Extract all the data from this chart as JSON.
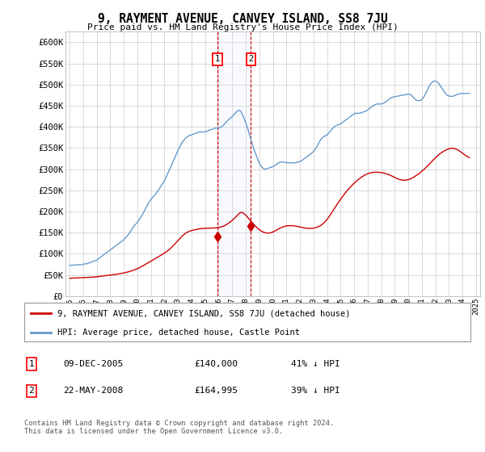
{
  "title": "9, RAYMENT AVENUE, CANVEY ISLAND, SS8 7JU",
  "subtitle": "Price paid vs. HM Land Registry's House Price Index (HPI)",
  "background_color": "#ffffff",
  "grid_color": "#cccccc",
  "hpi_color": "#6699cc",
  "price_color": "#cc0000",
  "transaction1": {
    "date": "09-DEC-2005",
    "price": 140000,
    "label": "1",
    "year": 2005.92,
    "hpi_pct": "41% ↓ HPI"
  },
  "transaction2": {
    "date": "22-MAY-2008",
    "price": 164995,
    "label": "2",
    "year": 2008.38,
    "hpi_pct": "39% ↓ HPI"
  },
  "legend_line1": "9, RAYMENT AVENUE, CANVEY ISLAND, SS8 7JU (detached house)",
  "legend_line2": "HPI: Average price, detached house, Castle Point",
  "footer": "Contains HM Land Registry data © Crown copyright and database right 2024.\nThis data is licensed under the Open Government Licence v3.0.",
  "ylim": [
    0,
    625000
  ],
  "yticks": [
    0,
    50000,
    100000,
    150000,
    200000,
    250000,
    300000,
    350000,
    400000,
    450000,
    500000,
    550000,
    600000
  ],
  "xlim": [
    1994.7,
    2025.3
  ],
  "hpi_data_x": [
    1995.0,
    1995.08,
    1995.17,
    1995.25,
    1995.33,
    1995.42,
    1995.5,
    1995.58,
    1995.67,
    1995.75,
    1995.83,
    1995.92,
    1996.0,
    1996.08,
    1996.17,
    1996.25,
    1996.33,
    1996.42,
    1996.5,
    1996.58,
    1996.67,
    1996.75,
    1996.83,
    1996.92,
    1997.0,
    1997.08,
    1997.17,
    1997.25,
    1997.33,
    1997.42,
    1997.5,
    1997.58,
    1997.67,
    1997.75,
    1997.83,
    1997.92,
    1998.0,
    1998.08,
    1998.17,
    1998.25,
    1998.33,
    1998.42,
    1998.5,
    1998.58,
    1998.67,
    1998.75,
    1998.83,
    1998.92,
    1999.0,
    1999.08,
    1999.17,
    1999.25,
    1999.33,
    1999.42,
    1999.5,
    1999.58,
    1999.67,
    1999.75,
    1999.83,
    1999.92,
    2000.0,
    2000.08,
    2000.17,
    2000.25,
    2000.33,
    2000.42,
    2000.5,
    2000.58,
    2000.67,
    2000.75,
    2000.83,
    2000.92,
    2001.0,
    2001.08,
    2001.17,
    2001.25,
    2001.33,
    2001.42,
    2001.5,
    2001.58,
    2001.67,
    2001.75,
    2001.83,
    2001.92,
    2002.0,
    2002.08,
    2002.17,
    2002.25,
    2002.33,
    2002.42,
    2002.5,
    2002.58,
    2002.67,
    2002.75,
    2002.83,
    2002.92,
    2003.0,
    2003.08,
    2003.17,
    2003.25,
    2003.33,
    2003.42,
    2003.5,
    2003.58,
    2003.67,
    2003.75,
    2003.83,
    2003.92,
    2004.0,
    2004.08,
    2004.17,
    2004.25,
    2004.33,
    2004.42,
    2004.5,
    2004.58,
    2004.67,
    2004.75,
    2004.83,
    2004.92,
    2005.0,
    2005.08,
    2005.17,
    2005.25,
    2005.33,
    2005.42,
    2005.5,
    2005.58,
    2005.67,
    2005.75,
    2005.83,
    2005.92,
    2006.0,
    2006.08,
    2006.17,
    2006.25,
    2006.33,
    2006.42,
    2006.5,
    2006.58,
    2006.67,
    2006.75,
    2006.83,
    2006.92,
    2007.0,
    2007.08,
    2007.17,
    2007.25,
    2007.33,
    2007.42,
    2007.5,
    2007.58,
    2007.67,
    2007.75,
    2007.83,
    2007.92,
    2008.0,
    2008.08,
    2008.17,
    2008.25,
    2008.33,
    2008.42,
    2008.5,
    2008.58,
    2008.67,
    2008.75,
    2008.83,
    2008.92,
    2009.0,
    2009.08,
    2009.17,
    2009.25,
    2009.33,
    2009.42,
    2009.5,
    2009.58,
    2009.67,
    2009.75,
    2009.83,
    2009.92,
    2010.0,
    2010.08,
    2010.17,
    2010.25,
    2010.33,
    2010.42,
    2010.5,
    2010.58,
    2010.67,
    2010.75,
    2010.83,
    2010.92,
    2011.0,
    2011.08,
    2011.17,
    2011.25,
    2011.33,
    2011.42,
    2011.5,
    2011.58,
    2011.67,
    2011.75,
    2011.83,
    2011.92,
    2012.0,
    2012.08,
    2012.17,
    2012.25,
    2012.33,
    2012.42,
    2012.5,
    2012.58,
    2012.67,
    2012.75,
    2012.83,
    2012.92,
    2013.0,
    2013.08,
    2013.17,
    2013.25,
    2013.33,
    2013.42,
    2013.5,
    2013.58,
    2013.67,
    2013.75,
    2013.83,
    2013.92,
    2014.0,
    2014.08,
    2014.17,
    2014.25,
    2014.33,
    2014.42,
    2014.5,
    2014.58,
    2014.67,
    2014.75,
    2014.83,
    2014.92,
    2015.0,
    2015.08,
    2015.17,
    2015.25,
    2015.33,
    2015.42,
    2015.5,
    2015.58,
    2015.67,
    2015.75,
    2015.83,
    2015.92,
    2016.0,
    2016.08,
    2016.17,
    2016.25,
    2016.33,
    2016.42,
    2016.5,
    2016.58,
    2016.67,
    2016.75,
    2016.83,
    2016.92,
    2017.0,
    2017.08,
    2017.17,
    2017.25,
    2017.33,
    2017.42,
    2017.5,
    2017.58,
    2017.67,
    2017.75,
    2017.83,
    2017.92,
    2018.0,
    2018.08,
    2018.17,
    2018.25,
    2018.33,
    2018.42,
    2018.5,
    2018.58,
    2018.67,
    2018.75,
    2018.83,
    2018.92,
    2019.0,
    2019.08,
    2019.17,
    2019.25,
    2019.33,
    2019.42,
    2019.5,
    2019.58,
    2019.67,
    2019.75,
    2019.83,
    2019.92,
    2020.0,
    2020.08,
    2020.17,
    2020.25,
    2020.33,
    2020.42,
    2020.5,
    2020.58,
    2020.67,
    2020.75,
    2020.83,
    2020.92,
    2021.0,
    2021.08,
    2021.17,
    2021.25,
    2021.33,
    2021.42,
    2021.5,
    2021.58,
    2021.67,
    2021.75,
    2021.83,
    2021.92,
    2022.0,
    2022.08,
    2022.17,
    2022.25,
    2022.33,
    2022.42,
    2022.5,
    2022.58,
    2022.67,
    2022.75,
    2022.83,
    2022.92,
    2023.0,
    2023.08,
    2023.17,
    2023.25,
    2023.33,
    2023.42,
    2023.5,
    2023.58,
    2023.67,
    2023.75,
    2023.83,
    2023.92,
    2024.0,
    2024.08,
    2024.17,
    2024.25,
    2024.33,
    2024.42,
    2024.5
  ],
  "hpi_data_y": [
    72000,
    72500,
    73000,
    73000,
    73500,
    73500,
    74000,
    74000,
    74000,
    74000,
    74000,
    74500,
    75000,
    75500,
    76000,
    76500,
    77000,
    78000,
    79000,
    80000,
    81000,
    82000,
    83000,
    84000,
    85000,
    87000,
    89000,
    91000,
    93000,
    95000,
    97000,
    99000,
    101000,
    103000,
    105000,
    107000,
    109000,
    111000,
    113000,
    115000,
    117000,
    119000,
    121000,
    123000,
    125000,
    127000,
    129000,
    131000,
    133000,
    136000,
    139000,
    142000,
    145000,
    149000,
    153000,
    157000,
    161000,
    165000,
    168000,
    171000,
    174000,
    178000,
    182000,
    186000,
    190000,
    195000,
    200000,
    205000,
    210000,
    215000,
    220000,
    225000,
    228000,
    231000,
    234000,
    237000,
    240000,
    244000,
    248000,
    252000,
    256000,
    260000,
    264000,
    268000,
    272000,
    278000,
    284000,
    290000,
    296000,
    302000,
    308000,
    314000,
    320000,
    326000,
    332000,
    338000,
    344000,
    350000,
    355000,
    360000,
    364000,
    368000,
    371000,
    374000,
    376000,
    378000,
    379000,
    380000,
    381000,
    382000,
    383000,
    384000,
    385000,
    386000,
    387000,
    388000,
    388000,
    388000,
    388000,
    388000,
    388000,
    389000,
    390000,
    391000,
    392000,
    393000,
    394000,
    395000,
    396000,
    397000,
    397000,
    397000,
    397000,
    398000,
    399000,
    401000,
    403000,
    406000,
    409000,
    412000,
    415000,
    418000,
    420000,
    422000,
    424000,
    427000,
    430000,
    433000,
    436000,
    438000,
    439000,
    438000,
    435000,
    430000,
    424000,
    417000,
    410000,
    402000,
    394000,
    385000,
    376000,
    367000,
    358000,
    350000,
    342000,
    335000,
    328000,
    321000,
    315000,
    310000,
    306000,
    303000,
    301000,
    300000,
    300000,
    301000,
    302000,
    303000,
    304000,
    305000,
    306000,
    307000,
    309000,
    311000,
    313000,
    315000,
    316000,
    317000,
    317000,
    317000,
    316000,
    316000,
    315000,
    315000,
    315000,
    315000,
    315000,
    315000,
    315000,
    315000,
    315000,
    316000,
    316000,
    317000,
    318000,
    319000,
    321000,
    323000,
    325000,
    327000,
    329000,
    331000,
    333000,
    335000,
    337000,
    339000,
    342000,
    345000,
    349000,
    353000,
    358000,
    363000,
    368000,
    372000,
    375000,
    377000,
    378000,
    379000,
    381000,
    384000,
    387000,
    390000,
    393000,
    396000,
    399000,
    401000,
    403000,
    404000,
    405000,
    406000,
    407000,
    409000,
    411000,
    413000,
    415000,
    417000,
    419000,
    421000,
    423000,
    425000,
    427000,
    429000,
    431000,
    432000,
    432000,
    432000,
    432000,
    432000,
    433000,
    434000,
    435000,
    436000,
    437000,
    438000,
    440000,
    442000,
    444000,
    446000,
    448000,
    450000,
    452000,
    453000,
    454000,
    454000,
    454000,
    454000,
    454000,
    455000,
    456000,
    457000,
    459000,
    461000,
    463000,
    465000,
    467000,
    469000,
    470000,
    471000,
    471000,
    472000,
    472000,
    473000,
    473000,
    474000,
    474000,
    475000,
    475000,
    476000,
    476000,
    477000,
    477000,
    477000,
    476000,
    474000,
    471000,
    468000,
    465000,
    463000,
    462000,
    462000,
    462000,
    463000,
    465000,
    468000,
    472000,
    477000,
    482000,
    488000,
    493000,
    498000,
    502000,
    505000,
    507000,
    508000,
    508000,
    507000,
    505000,
    502000,
    498000,
    494000,
    490000,
    486000,
    482000,
    479000,
    476000,
    474000,
    473000,
    472000,
    472000,
    472000,
    473000,
    474000,
    475000,
    476000,
    477000,
    478000,
    479000,
    479000,
    479000,
    479000,
    479000,
    479000,
    479000,
    479000,
    479000
  ],
  "price_data_x": [
    1995.0,
    1995.08,
    1995.17,
    1995.25,
    1995.33,
    1995.42,
    1995.5,
    1995.58,
    1995.67,
    1995.75,
    1995.83,
    1995.92,
    1996.0,
    1996.08,
    1996.17,
    1996.25,
    1996.33,
    1996.42,
    1996.5,
    1996.58,
    1996.67,
    1996.75,
    1996.83,
    1996.92,
    1997.0,
    1997.08,
    1997.17,
    1997.25,
    1997.33,
    1997.42,
    1997.5,
    1997.58,
    1997.67,
    1997.75,
    1997.83,
    1997.92,
    1998.0,
    1998.08,
    1998.17,
    1998.25,
    1998.33,
    1998.42,
    1998.5,
    1998.58,
    1998.67,
    1998.75,
    1998.83,
    1998.92,
    1999.0,
    1999.08,
    1999.17,
    1999.25,
    1999.33,
    1999.42,
    1999.5,
    1999.58,
    1999.67,
    1999.75,
    1999.83,
    1999.92,
    2000.0,
    2000.08,
    2000.17,
    2000.25,
    2000.33,
    2000.42,
    2000.5,
    2000.58,
    2000.67,
    2000.75,
    2000.83,
    2000.92,
    2001.0,
    2001.08,
    2001.17,
    2001.25,
    2001.33,
    2001.42,
    2001.5,
    2001.58,
    2001.67,
    2001.75,
    2001.83,
    2001.92,
    2002.0,
    2002.08,
    2002.17,
    2002.25,
    2002.33,
    2002.42,
    2002.5,
    2002.58,
    2002.67,
    2002.75,
    2002.83,
    2002.92,
    2003.0,
    2003.08,
    2003.17,
    2003.25,
    2003.33,
    2003.42,
    2003.5,
    2003.58,
    2003.67,
    2003.75,
    2003.83,
    2003.92,
    2004.0,
    2004.08,
    2004.17,
    2004.25,
    2004.33,
    2004.42,
    2004.5,
    2004.58,
    2004.67,
    2004.75,
    2004.83,
    2004.92,
    2005.0,
    2005.08,
    2005.17,
    2005.25,
    2005.33,
    2005.42,
    2005.5,
    2005.58,
    2005.67,
    2005.75,
    2005.83,
    2005.92,
    2006.0,
    2006.08,
    2006.17,
    2006.25,
    2006.33,
    2006.42,
    2006.5,
    2006.58,
    2006.67,
    2006.75,
    2006.83,
    2006.92,
    2007.0,
    2007.08,
    2007.17,
    2007.25,
    2007.33,
    2007.42,
    2007.5,
    2007.58,
    2007.67,
    2007.75,
    2007.83,
    2007.92,
    2008.0,
    2008.08,
    2008.17,
    2008.25,
    2008.33,
    2008.42,
    2008.5,
    2008.58,
    2008.67,
    2008.75,
    2008.83,
    2008.92,
    2009.0,
    2009.08,
    2009.17,
    2009.25,
    2009.33,
    2009.42,
    2009.5,
    2009.58,
    2009.67,
    2009.75,
    2009.83,
    2009.92,
    2010.0,
    2010.08,
    2010.17,
    2010.25,
    2010.33,
    2010.42,
    2010.5,
    2010.58,
    2010.67,
    2010.75,
    2010.83,
    2010.92,
    2011.0,
    2011.08,
    2011.17,
    2011.25,
    2011.33,
    2011.42,
    2011.5,
    2011.58,
    2011.67,
    2011.75,
    2011.83,
    2011.92,
    2012.0,
    2012.08,
    2012.17,
    2012.25,
    2012.33,
    2012.42,
    2012.5,
    2012.58,
    2012.67,
    2012.75,
    2012.83,
    2012.92,
    2013.0,
    2013.08,
    2013.17,
    2013.25,
    2013.33,
    2013.42,
    2013.5,
    2013.58,
    2013.67,
    2013.75,
    2013.83,
    2013.92,
    2014.0,
    2014.08,
    2014.17,
    2014.25,
    2014.33,
    2014.42,
    2014.5,
    2014.58,
    2014.67,
    2014.75,
    2014.83,
    2014.92,
    2015.0,
    2015.08,
    2015.17,
    2015.25,
    2015.33,
    2015.42,
    2015.5,
    2015.58,
    2015.67,
    2015.75,
    2015.83,
    2015.92,
    2016.0,
    2016.08,
    2016.17,
    2016.25,
    2016.33,
    2016.42,
    2016.5,
    2016.58,
    2016.67,
    2016.75,
    2016.83,
    2016.92,
    2017.0,
    2017.08,
    2017.17,
    2017.25,
    2017.33,
    2017.42,
    2017.5,
    2017.58,
    2017.67,
    2017.75,
    2017.83,
    2017.92,
    2018.0,
    2018.08,
    2018.17,
    2018.25,
    2018.33,
    2018.42,
    2018.5,
    2018.58,
    2018.67,
    2018.75,
    2018.83,
    2018.92,
    2019.0,
    2019.08,
    2019.17,
    2019.25,
    2019.33,
    2019.42,
    2019.5,
    2019.58,
    2019.67,
    2019.75,
    2019.83,
    2019.92,
    2020.0,
    2020.08,
    2020.17,
    2020.25,
    2020.33,
    2020.42,
    2020.5,
    2020.58,
    2020.67,
    2020.75,
    2020.83,
    2020.92,
    2021.0,
    2021.08,
    2021.17,
    2021.25,
    2021.33,
    2021.42,
    2021.5,
    2021.58,
    2021.67,
    2021.75,
    2021.83,
    2021.92,
    2022.0,
    2022.08,
    2022.17,
    2022.25,
    2022.33,
    2022.42,
    2022.5,
    2022.58,
    2022.67,
    2022.75,
    2022.83,
    2022.92,
    2023.0,
    2023.08,
    2023.17,
    2023.25,
    2023.33,
    2023.42,
    2023.5,
    2023.58,
    2023.67,
    2023.75,
    2023.83,
    2023.92,
    2024.0,
    2024.08,
    2024.17,
    2024.25,
    2024.33,
    2024.42,
    2024.5
  ],
  "price_data_y": [
    42000,
    42200,
    42400,
    42500,
    42600,
    42700,
    42800,
    42900,
    43000,
    43100,
    43200,
    43300,
    43400,
    43500,
    43600,
    43800,
    44000,
    44200,
    44400,
    44600,
    44800,
    45000,
    45200,
    45400,
    45600,
    45900,
    46200,
    46500,
    46800,
    47100,
    47400,
    47700,
    48000,
    48300,
    48600,
    48900,
    49200,
    49600,
    50000,
    50400,
    50800,
    51200,
    51600,
    52100,
    52600,
    53100,
    53600,
    54100,
    54600,
    55200,
    55800,
    56500,
    57200,
    58000,
    58800,
    59600,
    60500,
    61500,
    62500,
    63500,
    64500,
    65800,
    67200,
    68700,
    70200,
    71700,
    73200,
    74700,
    76200,
    77700,
    79200,
    80700,
    82200,
    83800,
    85400,
    87000,
    88600,
    90200,
    91800,
    93400,
    95000,
    96600,
    98200,
    99800,
    101400,
    103200,
    105100,
    107200,
    109400,
    111800,
    114300,
    116900,
    119600,
    122300,
    125100,
    128000,
    131000,
    134000,
    137000,
    140000,
    142500,
    144800,
    146900,
    148800,
    150500,
    151800,
    153000,
    154000,
    154800,
    155500,
    156100,
    156700,
    157300,
    157900,
    158400,
    158900,
    159300,
    159600,
    159800,
    160000,
    160100,
    160200,
    160200,
    160300,
    160400,
    160500,
    160600,
    160800,
    161000,
    161200,
    161500,
    161800,
    162200,
    162700,
    163300,
    164100,
    165000,
    166100,
    167400,
    169000,
    170700,
    172600,
    174600,
    176700,
    178900,
    181300,
    183800,
    186400,
    189100,
    191900,
    194700,
    196800,
    197800,
    197200,
    195800,
    193700,
    191200,
    188400,
    185400,
    182300,
    179200,
    176100,
    173000,
    170000,
    167000,
    164200,
    161600,
    159200,
    157000,
    155100,
    153400,
    151900,
    150700,
    149800,
    149200,
    148900,
    148900,
    149100,
    149700,
    150400,
    151400,
    152600,
    153900,
    155400,
    156900,
    158400,
    159900,
    161300,
    162500,
    163600,
    164500,
    165200,
    165700,
    166100,
    166300,
    166500,
    166500,
    166400,
    166200,
    165900,
    165500,
    165000,
    164500,
    163900,
    163300,
    162700,
    162100,
    161600,
    161100,
    160700,
    160400,
    160200,
    160000,
    159900,
    160000,
    160200,
    160500,
    161000,
    161700,
    162500,
    163500,
    164800,
    166300,
    168100,
    170200,
    172500,
    175100,
    178000,
    181200,
    184700,
    188400,
    192300,
    196400,
    200500,
    204700,
    208900,
    213000,
    217100,
    221100,
    225000,
    228800,
    232500,
    236100,
    239700,
    243100,
    246400,
    249600,
    252700,
    255800,
    258700,
    261500,
    264200,
    266800,
    269300,
    271600,
    273900,
    276000,
    278100,
    280000,
    281900,
    283700,
    285300,
    286800,
    288100,
    289200,
    290200,
    291000,
    291600,
    292100,
    292500,
    292700,
    292800,
    292800,
    292700,
    292500,
    292200,
    291800,
    291300,
    290700,
    290000,
    289300,
    288500,
    287600,
    286600,
    285500,
    284300,
    283100,
    281800,
    280400,
    279100,
    277900,
    276800,
    275800,
    275000,
    274400,
    274000,
    273800,
    273900,
    274100,
    274500,
    275200,
    276100,
    277200,
    278500,
    279900,
    281500,
    283200,
    285000,
    286900,
    288800,
    290800,
    292900,
    295100,
    297400,
    299800,
    302300,
    304900,
    307500,
    310200,
    313000,
    315800,
    318600,
    321400,
    324100,
    326800,
    329400,
    331900,
    334200,
    336400,
    338400,
    340200,
    341900,
    343400,
    344800,
    346100,
    347200,
    348100,
    348800,
    349200,
    349300,
    349100,
    348600,
    347700,
    346500,
    345100,
    343400,
    341600,
    339600,
    337600,
    335600,
    333700,
    331900,
    330200,
    328700,
    327400
  ]
}
